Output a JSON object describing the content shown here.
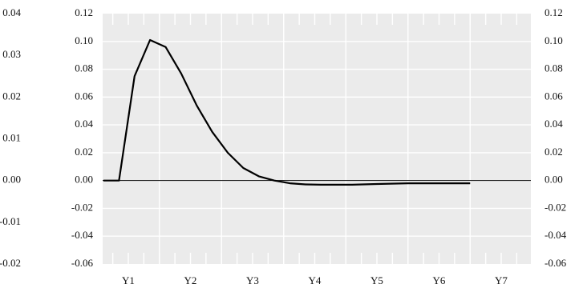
{
  "chart_data": {
    "type": "line",
    "x_categories": [
      "Y1",
      "Y2",
      "Y3",
      "Y4",
      "Y5",
      "Y6",
      "Y7"
    ],
    "y_left_outer_ticks": [
      "0.04",
      "0.03",
      "0.02",
      "0.01",
      "0.00",
      "-0.01",
      "-0.02"
    ],
    "y_main_ticks": [
      "0.12",
      "0.10",
      "0.08",
      "0.06",
      "0.04",
      "0.02",
      "0.00",
      "-0.02",
      "-0.04",
      "-0.06"
    ],
    "y_right_ticks": [
      "0.12",
      "0.10",
      "0.08",
      "0.06",
      "0.04",
      "0.02",
      "0.00",
      "-0.02",
      "-0.04",
      "-0.06"
    ],
    "ylim": [
      -0.06,
      0.12
    ],
    "grid": true,
    "zero_line": true,
    "colors": {
      "plot_bg": "#ebebeb",
      "grid": "#ffffff",
      "line": "#000000"
    },
    "series": [
      {
        "x": [
          0.6,
          0.85,
          1.1,
          1.35,
          1.6,
          1.85,
          2.1,
          2.35,
          2.6,
          2.85,
          3.1,
          3.35,
          3.6,
          3.85,
          4.1,
          4.35,
          4.6,
          5.0,
          5.5,
          6.0,
          6.5
        ],
        "values": [
          0.0,
          0.0,
          0.075,
          0.101,
          0.096,
          0.077,
          0.054,
          0.035,
          0.02,
          0.009,
          0.003,
          0.0,
          -0.002,
          -0.0028,
          -0.003,
          -0.003,
          -0.003,
          -0.0025,
          -0.002,
          -0.002,
          -0.002
        ]
      }
    ]
  }
}
